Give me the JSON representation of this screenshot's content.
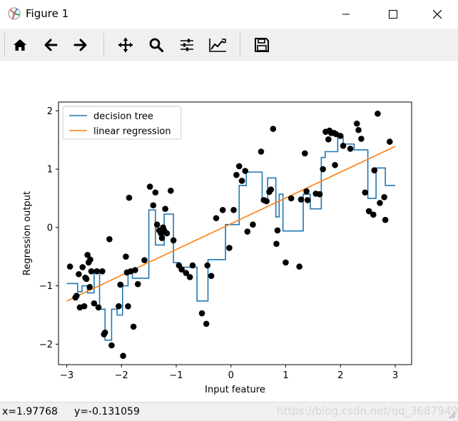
{
  "window": {
    "title": "Figure 1"
  },
  "toolbar": {
    "tools": [
      "home-icon",
      "back-icon",
      "forward-icon",
      "pan-icon",
      "zoom-icon",
      "subplots-icon",
      "customize-icon",
      "save-icon"
    ]
  },
  "status": {
    "x": "x=1.97768",
    "y": "y=-0.131059",
    "watermark": "https://blog.csdn.net/qq_36879493"
  },
  "colors": {
    "tree": "#1f77b4",
    "linear": "#ff7f0e",
    "points": "#000000"
  },
  "chart_data": {
    "type": "line",
    "xlabel": "Input feature",
    "ylabel": "Regression output",
    "xlim": [
      -3.15,
      3.3
    ],
    "ylim": [
      -2.35,
      2.15
    ],
    "xticks": [
      -3,
      -2,
      -1,
      0,
      1,
      2,
      3
    ],
    "yticks": [
      -2,
      -1,
      0,
      1,
      2
    ],
    "xtick_labels": [
      "−3",
      "−2",
      "−1",
      "0",
      "1",
      "2",
      "3"
    ],
    "ytick_labels": [
      "−2",
      "−1",
      "0",
      "1",
      "2"
    ],
    "legend": {
      "position": "top-left",
      "entries": [
        "decision tree",
        "linear regression"
      ]
    },
    "series": [
      {
        "name": "decision tree",
        "type": "step",
        "color": "#1f77b4",
        "x": [
          -3.0,
          -2.8,
          -2.8,
          -2.72,
          -2.72,
          -2.62,
          -2.62,
          -2.5,
          -2.5,
          -2.4,
          -2.4,
          -2.3,
          -2.3,
          -2.18,
          -2.18,
          -2.08,
          -2.08,
          -1.98,
          -1.98,
          -1.88,
          -1.88,
          -1.8,
          -1.8,
          -1.5,
          -1.5,
          -1.38,
          -1.38,
          -1.22,
          -1.22,
          -1.05,
          -1.05,
          -0.95,
          -0.95,
          -0.62,
          -0.62,
          -0.42,
          -0.42,
          -0.1,
          -0.1,
          0.15,
          0.15,
          0.28,
          0.28,
          0.57,
          0.57,
          0.67,
          0.67,
          0.82,
          0.82,
          0.88,
          0.88,
          0.95,
          0.95,
          1.32,
          1.32,
          1.45,
          1.45,
          1.65,
          1.65,
          1.72,
          1.72,
          1.95,
          1.95,
          2.05,
          2.05,
          2.25,
          2.25,
          2.5,
          2.5,
          2.65,
          2.65,
          2.82,
          2.82,
          3.0
        ],
        "y": [
          -0.96,
          -0.96,
          -1.1,
          -1.1,
          -1.0,
          -1.0,
          -1.12,
          -1.12,
          -0.75,
          -0.75,
          -1.4,
          -1.4,
          -1.93,
          -1.93,
          -1.4,
          -1.4,
          -1.5,
          -1.5,
          -1.0,
          -1.0,
          -0.75,
          -0.75,
          -0.87,
          -0.87,
          0.3,
          0.3,
          -0.3,
          -0.3,
          0.23,
          0.23,
          -0.6,
          -0.6,
          -0.68,
          -0.68,
          -1.26,
          -1.26,
          -0.55,
          -0.55,
          0.05,
          0.05,
          0.72,
          0.72,
          0.95,
          0.95,
          0.45,
          0.45,
          0.85,
          0.85,
          0.18,
          0.18,
          0.57,
          0.57,
          -0.06,
          -0.06,
          0.57,
          0.57,
          0.32,
          0.32,
          1.2,
          1.2,
          1.3,
          1.3,
          1.55,
          1.55,
          1.43,
          1.43,
          1.33,
          1.33,
          0.5,
          0.5,
          1.02,
          1.02,
          0.72,
          0.72
        ]
      },
      {
        "name": "linear regression",
        "type": "line",
        "color": "#ff7f0e",
        "x": [
          -3.0,
          3.0
        ],
        "y": [
          -1.26,
          1.39
        ]
      },
      {
        "name": "",
        "type": "scatter",
        "color": "#000000",
        "x": [
          -2.94,
          -2.84,
          -2.82,
          -2.78,
          -2.76,
          -2.71,
          -2.68,
          -2.66,
          -2.64,
          -2.62,
          -2.6,
          -2.58,
          -2.57,
          -2.55,
          -2.5,
          -2.45,
          -2.42,
          -2.35,
          -2.32,
          -2.3,
          -2.22,
          -2.18,
          -2.05,
          -2.02,
          -1.97,
          -1.92,
          -1.9,
          -1.88,
          -1.86,
          -1.83,
          -1.78,
          -1.75,
          -1.7,
          -1.58,
          -1.48,
          -1.42,
          -1.38,
          -1.35,
          -1.31,
          -1.28,
          -1.26,
          -1.24,
          -1.22,
          -1.2,
          -1.17,
          -1.1,
          -1.05,
          -0.95,
          -0.9,
          -0.82,
          -0.75,
          -0.7,
          -0.53,
          -0.45,
          -0.43,
          -0.36,
          -0.27,
          -0.15,
          -0.03,
          0.05,
          0.1,
          0.15,
          0.2,
          0.26,
          0.3,
          0.4,
          0.55,
          0.6,
          0.65,
          0.7,
          0.73,
          0.77,
          0.83,
          0.85,
          1.0,
          1.1,
          1.25,
          1.28,
          1.35,
          1.38,
          1.4,
          1.55,
          1.62,
          1.68,
          1.73,
          1.78,
          1.8,
          1.83,
          1.88,
          1.9,
          1.92,
          2.0,
          2.05,
          2.18,
          2.3,
          2.33,
          2.38,
          2.45,
          2.52,
          2.6,
          2.62,
          2.68,
          2.72,
          2.8,
          2.82,
          2.9
        ],
        "y": [
          -0.67,
          -1.2,
          -1.17,
          -0.8,
          -1.37,
          -0.68,
          -1.35,
          -0.86,
          -0.88,
          -0.47,
          -0.6,
          -1.02,
          -0.55,
          -0.75,
          -1.3,
          -0.75,
          -1.37,
          -0.75,
          -1.83,
          -1.8,
          -0.2,
          -2.02,
          -1.35,
          -0.98,
          -2.2,
          -0.5,
          -0.77,
          -1.35,
          0.51,
          -0.75,
          -1.7,
          -0.73,
          -0.97,
          -0.56,
          0.7,
          0.38,
          0.6,
          0.05,
          -0.05,
          -0.1,
          -0.18,
          0.0,
          -0.05,
          0.32,
          -0.1,
          0.63,
          -0.22,
          -0.65,
          -0.72,
          -0.78,
          -0.85,
          -0.65,
          -1.47,
          -1.65,
          -0.65,
          -0.83,
          0.16,
          0.3,
          -0.35,
          0.3,
          0.9,
          1.05,
          0.8,
          0.97,
          -0.07,
          0.05,
          1.3,
          0.47,
          0.45,
          0.61,
          0.65,
          1.69,
          -0.28,
          -0.05,
          -0.6,
          0.5,
          -0.67,
          0.48,
          1.27,
          0.62,
          0.47,
          0.58,
          0.57,
          1.0,
          1.64,
          1.51,
          1.66,
          1.62,
          1.62,
          1.07,
          1.6,
          1.57,
          1.4,
          1.35,
          1.78,
          1.67,
          1.52,
          0.6,
          0.28,
          0.22,
          0.98,
          1.95,
          0.42,
          0.52,
          0.13,
          1.47
        ]
      }
    ]
  }
}
